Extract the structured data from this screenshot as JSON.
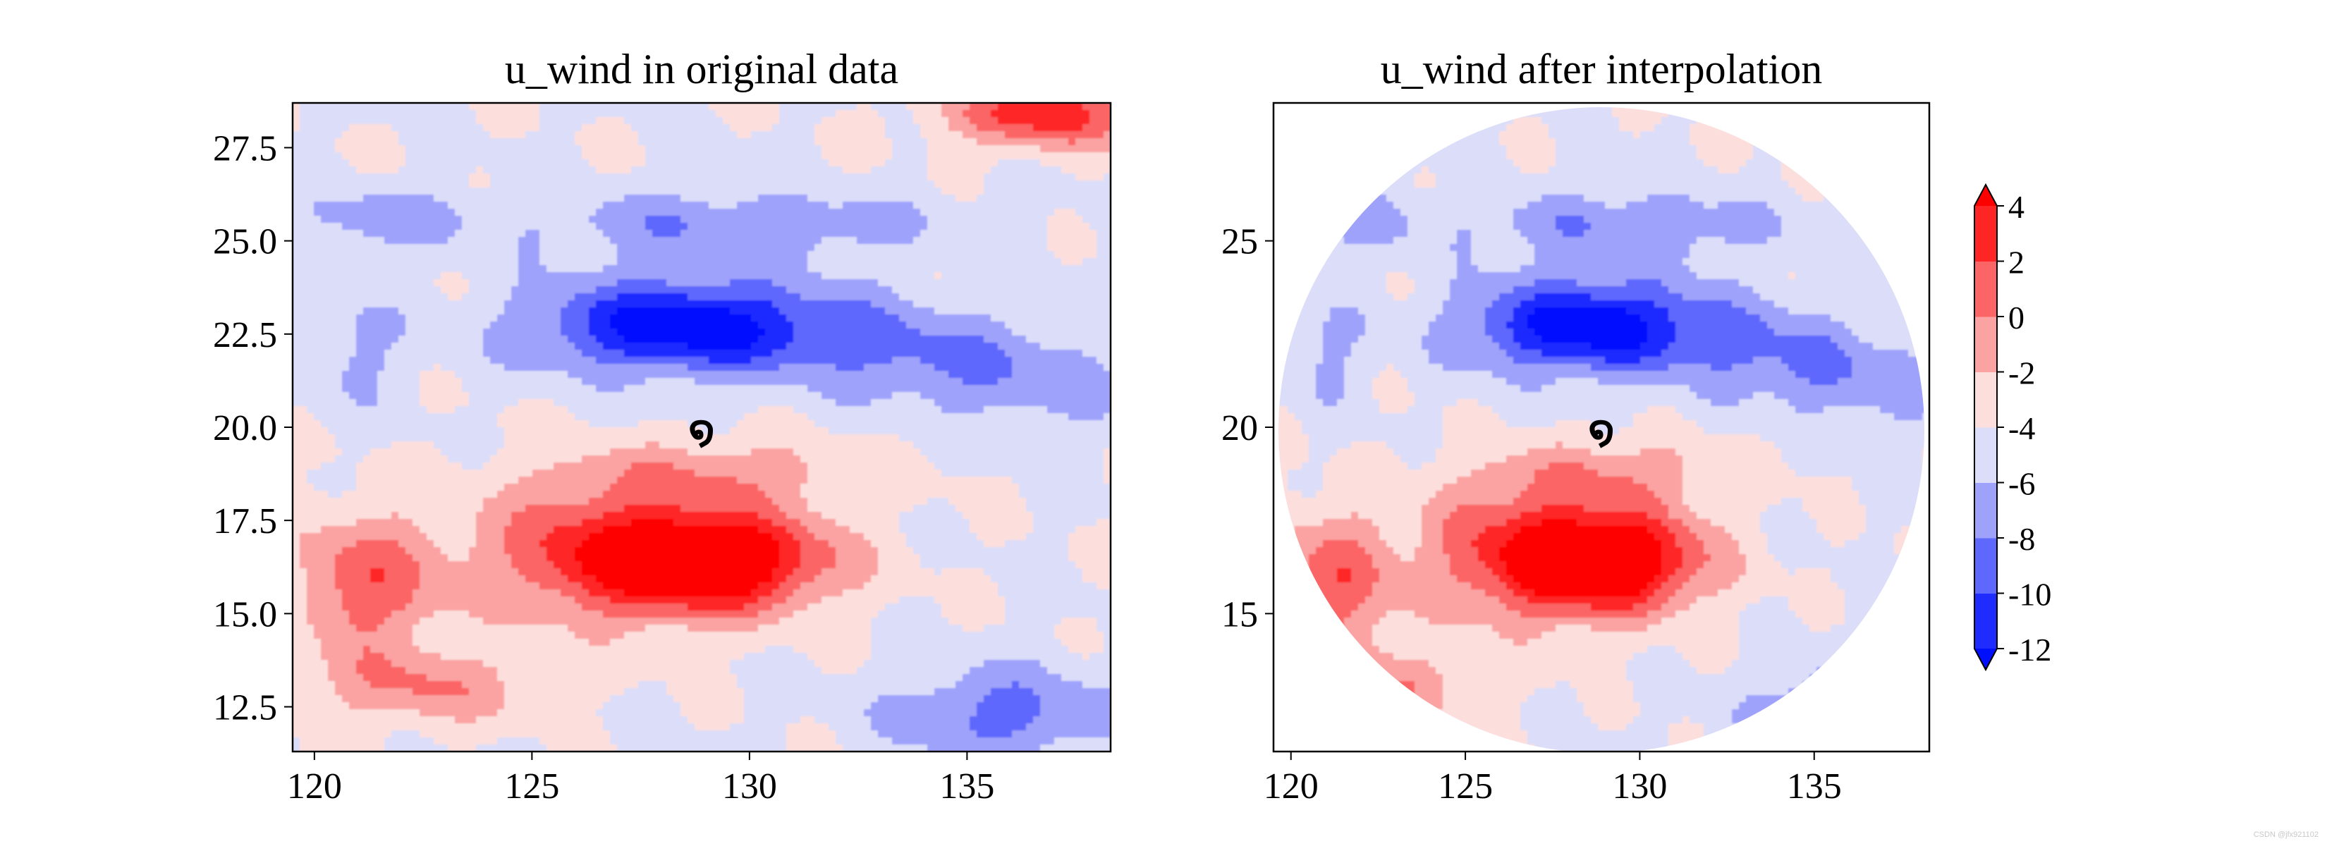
{
  "chart_data": [
    {
      "type": "contourf",
      "title": "u_wind in original data",
      "xlabel": "",
      "ylabel": "",
      "xlim": [
        119.5,
        138.3
      ],
      "ylim": [
        11.3,
        28.7
      ],
      "xticks": [
        "120",
        "125",
        "130",
        "135"
      ],
      "xtick_values": [
        120,
        125,
        130,
        135
      ],
      "yticks": [
        "12.5",
        "15.0",
        "17.5",
        "20.0",
        "22.5",
        "25.0",
        "27.5"
      ],
      "ytick_values": [
        12.5,
        15.0,
        17.5,
        20.0,
        22.5,
        25.0,
        27.5
      ],
      "typhoon_center": {
        "lon": 128.9,
        "lat": 19.9,
        "symbol": "typhoon-icon"
      },
      "domain": "rectangular"
    },
    {
      "type": "contourf",
      "title": "u_wind after interpolation",
      "xlabel": "",
      "ylabel": "",
      "xlim": [
        119.5,
        138.3
      ],
      "ylim": [
        11.3,
        28.7
      ],
      "xticks": [
        "120",
        "125",
        "130",
        "135"
      ],
      "xtick_values": [
        120,
        125,
        130,
        135
      ],
      "yticks": [
        "15",
        "20",
        "25"
      ],
      "ytick_values": [
        15,
        20,
        25
      ],
      "typhoon_center": {
        "lon": 128.9,
        "lat": 19.9,
        "symbol": "typhoon-icon"
      },
      "domain": "circular",
      "domain_radius_deg": 9.4
    }
  ],
  "colorbar": {
    "levels": [
      -12,
      -10,
      -8,
      -6,
      -4,
      -2,
      0,
      2,
      4
    ],
    "labels": [
      "4",
      "2",
      "0",
      "-2",
      "-4",
      "-6",
      "-8",
      "-10",
      "-12"
    ],
    "extend": "both",
    "colors": [
      "#1f2cff",
      "#5e68fd",
      "#9ea2fa",
      "#dcdef9",
      "#fcdfdd",
      "#fba3a2",
      "#fb6565",
      "#fe2525"
    ],
    "under_color": "#0010ff",
    "over_color": "#ff0000"
  },
  "watermark": "CSDN @jfx921102"
}
